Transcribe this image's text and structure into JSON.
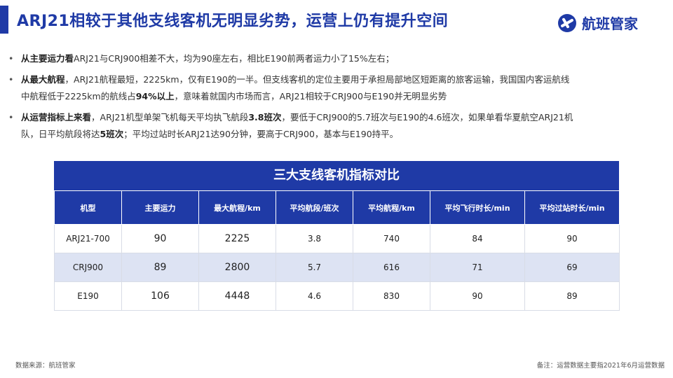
{
  "header": {
    "title": "ARJ21相较于其他支线客机无明显劣势，运营上仍有提升空间",
    "logo_text": "航班管家",
    "accent_color": "#1f3aa6"
  },
  "bullets": [
    {
      "lines": [
        [
          {
            "t": "从主要运力看",
            "b": true
          },
          {
            "t": "ARJ21与CRJ900相差不大，均为90座左右，相比E190前两者运力小了15%左右；",
            "b": false
          }
        ]
      ]
    },
    {
      "lines": [
        [
          {
            "t": "从最大航程",
            "b": true
          },
          {
            "t": "，ARJ21航程最短，2225km，仅有E190的一半。但支线客机的定位主要用于承担局部地区短距离的旅客运输，我国国内客运航线",
            "b": false
          }
        ],
        [
          {
            "t": "中航程低于2225km的航线占",
            "b": false
          },
          {
            "t": "94%以上",
            "b": true
          },
          {
            "t": "，意味着就国内市场而言，ARJ21相较于CRJ900与E190并无明显劣势",
            "b": false
          }
        ]
      ]
    },
    {
      "lines": [
        [
          {
            "t": "从运营指标上来看",
            "b": true
          },
          {
            "t": "，ARJ21机型单架飞机每天平均执飞航段",
            "b": false
          },
          {
            "t": "3.8班次",
            "b": true
          },
          {
            "t": "，要低于CRJ900的5.7班次与E190的4.6班次，如果单看华夏航空ARJ21机",
            "b": false
          }
        ],
        [
          {
            "t": "队，日平均航段将达",
            "b": false
          },
          {
            "t": "5班次",
            "b": true
          },
          {
            "t": "；平均过站时长ARJ21达90分钟，要高于CRJ900，基本与E190持平。",
            "b": false
          }
        ]
      ]
    }
  ],
  "table": {
    "title": "三大支线客机指标对比",
    "headers": [
      "机型",
      "主要运力",
      "最大航程/km",
      "平均航段/班次",
      "平均航程/km",
      "平均飞行时长/min",
      "平均过站时长/min"
    ],
    "rows": [
      [
        "ARJ21-700",
        "90",
        "2225",
        "3.8",
        "740",
        "84",
        "90"
      ],
      [
        "CRJ900",
        "89",
        "2800",
        "5.7",
        "616",
        "71",
        "69"
      ],
      [
        "E190",
        "106",
        "4448",
        "4.6",
        "830",
        "90",
        "89"
      ]
    ]
  },
  "footer": {
    "source": "数据来源：航班管家",
    "note": "备注：运营数据主要指2021年6月运营数据"
  }
}
